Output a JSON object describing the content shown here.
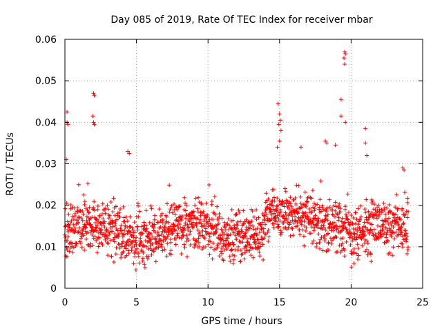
{
  "chart_data": {
    "type": "scatter",
    "title": "Day 085 of 2019, Rate Of TEC Index for receiver mbar",
    "xlabel": "GPS time / hours",
    "ylabel": "ROTI / TECUs",
    "xlim": [
      0,
      25
    ],
    "ylim": [
      0,
      0.06
    ],
    "xticks": [
      0,
      5,
      10,
      15,
      20,
      25
    ],
    "xtick_labels": [
      "0",
      "5",
      "10",
      "15",
      "20",
      "25"
    ],
    "yticks": [
      0,
      0.01,
      0.02,
      0.03,
      0.04,
      0.05,
      0.06
    ],
    "ytick_labels": [
      "0",
      "0.01",
      "0.02",
      "0.03",
      "0.04",
      "0.05",
      "0.06"
    ],
    "grid": true,
    "marker": "+",
    "color": "#ff0000",
    "data_span_hours": [
      0,
      24
    ],
    "typical_band": [
      0.005,
      0.025
    ],
    "series": [
      {
        "name": "ROTI",
        "outliers": [
          {
            "x": 0.15,
            "y": 0.0425
          },
          {
            "x": 0.15,
            "y": 0.04
          },
          {
            "x": 0.2,
            "y": 0.0395
          },
          {
            "x": 0.1,
            "y": 0.031
          },
          {
            "x": 2.0,
            "y": 0.047
          },
          {
            "x": 2.05,
            "y": 0.0465
          },
          {
            "x": 1.95,
            "y": 0.0415
          },
          {
            "x": 2.0,
            "y": 0.04
          },
          {
            "x": 2.05,
            "y": 0.0395
          },
          {
            "x": 4.4,
            "y": 0.033
          },
          {
            "x": 4.5,
            "y": 0.0325
          },
          {
            "x": 14.9,
            "y": 0.0445
          },
          {
            "x": 15.0,
            "y": 0.042
          },
          {
            "x": 15.05,
            "y": 0.0405
          },
          {
            "x": 14.95,
            "y": 0.0395
          },
          {
            "x": 15.1,
            "y": 0.038
          },
          {
            "x": 15.0,
            "y": 0.0355
          },
          {
            "x": 14.85,
            "y": 0.034
          },
          {
            "x": 16.5,
            "y": 0.034
          },
          {
            "x": 18.2,
            "y": 0.0355
          },
          {
            "x": 18.3,
            "y": 0.035
          },
          {
            "x": 18.9,
            "y": 0.0345
          },
          {
            "x": 19.3,
            "y": 0.0455
          },
          {
            "x": 19.3,
            "y": 0.0415
          },
          {
            "x": 19.55,
            "y": 0.057
          },
          {
            "x": 19.6,
            "y": 0.0565
          },
          {
            "x": 19.5,
            "y": 0.0555
          },
          {
            "x": 19.55,
            "y": 0.054
          },
          {
            "x": 19.6,
            "y": 0.04
          },
          {
            "x": 21.0,
            "y": 0.0385
          },
          {
            "x": 21.0,
            "y": 0.035
          },
          {
            "x": 21.1,
            "y": 0.032
          },
          {
            "x": 23.6,
            "y": 0.029
          },
          {
            "x": 23.7,
            "y": 0.0285
          }
        ]
      }
    ]
  }
}
